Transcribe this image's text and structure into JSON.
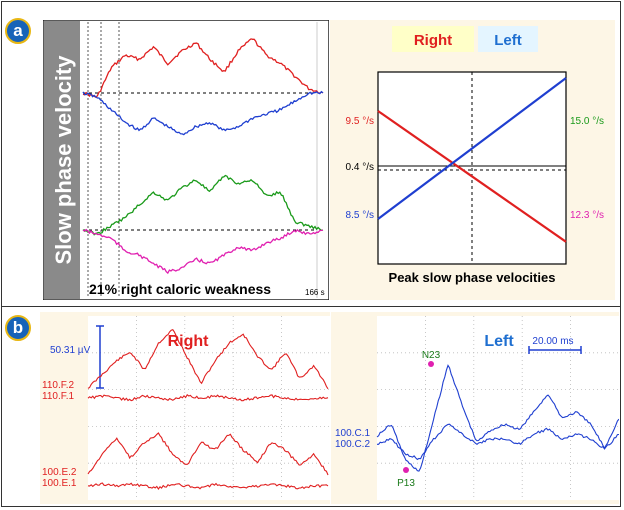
{
  "panel_a": {
    "badge": "a",
    "ylabel": "Slow phase velocity",
    "caption": "21% right caloric weakness",
    "time_label": "166 s",
    "legend_right": "Right",
    "legend_left": "Left",
    "peak_title": "Peak slow phase velocities",
    "right_start": "9.5 °/s",
    "left_start": "8.5 °/s",
    "center_value": "0.4 °/s",
    "left_end": "15.0 °/s",
    "right_end": "12.3 °/s"
  },
  "panel_b": {
    "badge": "b",
    "scale_amp": "50.31 µV",
    "scale_time": "20.00 ms",
    "title_right": "Right",
    "title_left": "Left",
    "ch_f2": "110.F.2",
    "ch_f1": "110.F.1",
    "ch_e2": "100.E.2",
    "ch_e1": "100.E.1",
    "ch_c1": "100.C.1",
    "ch_c2": "100.C.2",
    "peak_n23": "N23",
    "peak_p13": "P13"
  },
  "colors": {
    "right": "#e02020",
    "left": "#1f3fd0",
    "green": "#1a9a1a",
    "magenta": "#e020b0",
    "panel_bg": "#fdf6e6"
  },
  "chart_data": [
    {
      "type": "line",
      "title": "Peak slow phase velocities",
      "series": [
        {
          "name": "Right",
          "x": [
            0,
            1
          ],
          "values": [
            9.5,
            -12.3
          ],
          "end_labels": [
            "9.5 °/s",
            "12.3 °/s"
          ]
        },
        {
          "name": "Left",
          "x": [
            0,
            1
          ],
          "values": [
            -8.5,
            15.0
          ],
          "end_labels": [
            "8.5 °/s",
            "15.0 °/s"
          ]
        }
      ],
      "center_value": 0.4,
      "units": "°/s",
      "ylim": [
        -16,
        16
      ]
    },
    {
      "type": "line",
      "xlabel": "",
      "caption": "21% right caloric weakness",
      "duration_label": "166 s",
      "series": [
        {
          "name": "Right",
          "values": [
            0,
            -1,
            6,
            9,
            8,
            11,
            7,
            10,
            12,
            8,
            5,
            10,
            13,
            9,
            7,
            4,
            1,
            0
          ]
        },
        {
          "name": "Left",
          "values": [
            0,
            -1,
            -4,
            -7,
            -9,
            -6,
            -8,
            -10,
            -8,
            -7,
            -9,
            -8,
            -6,
            -5,
            -4,
            -2,
            0,
            0
          ]
        },
        {
          "name": "Right",
          "values": [
            0,
            -1,
            1,
            3,
            6,
            9,
            7,
            10,
            12,
            9,
            13,
            11,
            12,
            8,
            9,
            2,
            1,
            0
          ]
        },
        {
          "name": "Left",
          "values": [
            0,
            -1,
            -2,
            -5,
            -6,
            -8,
            -10,
            -9,
            -7,
            -8,
            -6,
            -4,
            -5,
            -3,
            -2,
            0,
            -1,
            0
          ]
        }
      ]
    },
    {
      "type": "line",
      "title": "Right",
      "series": [
        {
          "name": "110.F.2",
          "values": [
            0,
            3,
            6,
            8,
            4,
            10,
            13,
            7,
            1,
            6,
            10,
            12,
            7,
            4,
            8,
            2,
            5,
            0
          ]
        },
        {
          "name": "110.F.1",
          "values": [
            0,
            1,
            0,
            -1,
            1,
            0,
            -1,
            1,
            0,
            1,
            0,
            -1,
            0,
            1,
            0,
            -1,
            0,
            0
          ]
        },
        {
          "name": "100.E.2",
          "values": [
            0,
            5,
            9,
            4,
            8,
            10,
            5,
            2,
            8,
            6,
            10,
            6,
            3,
            8,
            6,
            2,
            5,
            0
          ]
        },
        {
          "name": "100.E.1",
          "values": [
            0,
            1,
            0,
            1,
            0,
            -1,
            1,
            0,
            -1,
            1,
            0,
            -1,
            0,
            1,
            0,
            -1,
            0,
            0
          ]
        }
      ]
    },
    {
      "type": "line",
      "title": "Left",
      "series": [
        {
          "name": "100.C.1",
          "values": [
            0,
            2,
            -4,
            -6,
            3,
            12,
            5,
            -1,
            1,
            2,
            1,
            4,
            7,
            3,
            4,
            2,
            -2,
            3
          ]
        },
        {
          "name": "100.C.2",
          "values": [
            0,
            1,
            -2,
            -3,
            1,
            4,
            2,
            0,
            1,
            1,
            0,
            2,
            3,
            1,
            2,
            1,
            -1,
            2
          ]
        }
      ],
      "peaks": [
        "N23",
        "P13"
      ]
    }
  ]
}
